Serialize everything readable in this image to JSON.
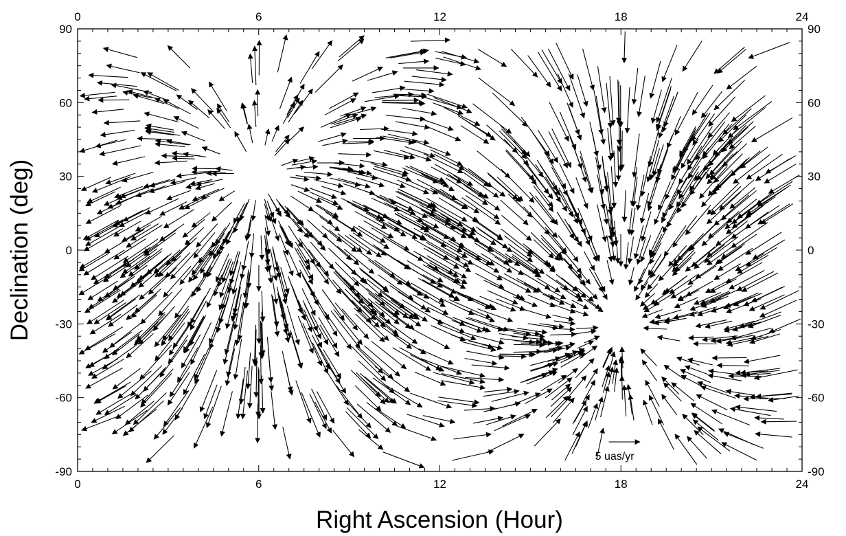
{
  "chart_data": {
    "type": "vector-field",
    "title": "",
    "xlabel": "Right Ascension (Hour)",
    "ylabel": "Declination (deg)",
    "xlim": [
      0,
      24
    ],
    "ylim": [
      -90,
      90
    ],
    "x_major_ticks": [
      0,
      6,
      12,
      18,
      24
    ],
    "x_minor_step": 0.5,
    "y_major_ticks": [
      -90,
      -60,
      -30,
      0,
      30,
      60,
      90
    ],
    "y_minor_step": 5,
    "x_tick_labels": [
      "0",
      "6",
      "12",
      "18",
      "24"
    ],
    "y_tick_labels": [
      "-90",
      "-60",
      "-30",
      "0",
      "30",
      "60",
      "90"
    ],
    "grid": false,
    "mirrored_axes": true,
    "field_model": {
      "description_units": "uas/yr",
      "apex_ra_hours": 6.0,
      "apex_dec_deg": 30.0,
      "antapex_ra_hours": 18.0,
      "antapex_dec_deg": -30.0,
      "arrow_length_scale": 1.0
    },
    "scale_arrow": {
      "label": "5 uas/yr",
      "magnitude": 5,
      "ra_start": 17.6,
      "dec": -78
    },
    "sample_vectors": [
      {
        "ra": 1.0,
        "dec": 0,
        "d_ra": 0.3,
        "d_dec": 4.0
      },
      {
        "ra": 12.0,
        "dec": 60,
        "d_ra": 1.5,
        "d_dec": -2.0
      },
      {
        "ra": 18.0,
        "dec": 45,
        "d_ra": 0.0,
        "d_dec": -5.0
      },
      {
        "ra": 21.0,
        "dec": 0,
        "d_ra": 1.5,
        "d_dec": 3.0
      }
    ]
  }
}
